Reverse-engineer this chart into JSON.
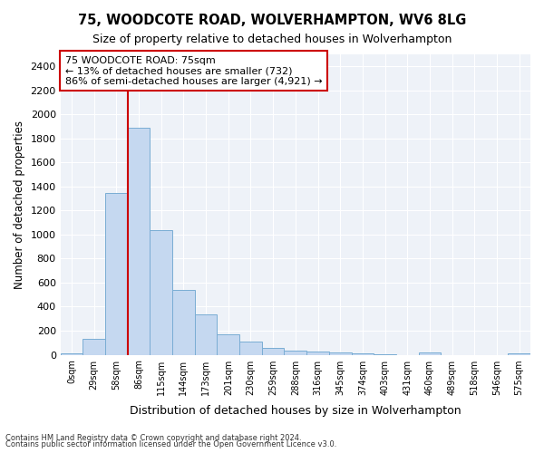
{
  "title": "75, WOODCOTE ROAD, WOLVERHAMPTON, WV6 8LG",
  "subtitle": "Size of property relative to detached houses in Wolverhampton",
  "xlabel": "Distribution of detached houses by size in Wolverhampton",
  "ylabel": "Number of detached properties",
  "bar_color": "#c5d8f0",
  "bar_edge_color": "#7aadd4",
  "categories": [
    "0sqm",
    "29sqm",
    "58sqm",
    "86sqm",
    "115sqm",
    "144sqm",
    "173sqm",
    "201sqm",
    "230sqm",
    "259sqm",
    "288sqm",
    "316sqm",
    "345sqm",
    "374sqm",
    "403sqm",
    "431sqm",
    "460sqm",
    "489sqm",
    "518sqm",
    "546sqm",
    "575sqm"
  ],
  "values": [
    15,
    130,
    1350,
    1890,
    1040,
    540,
    335,
    170,
    110,
    58,
    35,
    28,
    18,
    12,
    5,
    0,
    22,
    0,
    0,
    0,
    15
  ],
  "ylim": [
    0,
    2500
  ],
  "yticks": [
    0,
    200,
    400,
    600,
    800,
    1000,
    1200,
    1400,
    1600,
    1800,
    2000,
    2200,
    2400
  ],
  "vline_color": "#cc0000",
  "annotation_text": "75 WOODCOTE ROAD: 75sqm\n← 13% of detached houses are smaller (732)\n86% of semi-detached houses are larger (4,921) →",
  "annotation_box_color": "#ffffff",
  "annotation_box_edge": "#cc0000",
  "footnote1": "Contains HM Land Registry data © Crown copyright and database right 2024.",
  "footnote2": "Contains public sector information licensed under the Open Government Licence v3.0.",
  "background_color": "#eef2f8",
  "grid_color": "#ffffff"
}
